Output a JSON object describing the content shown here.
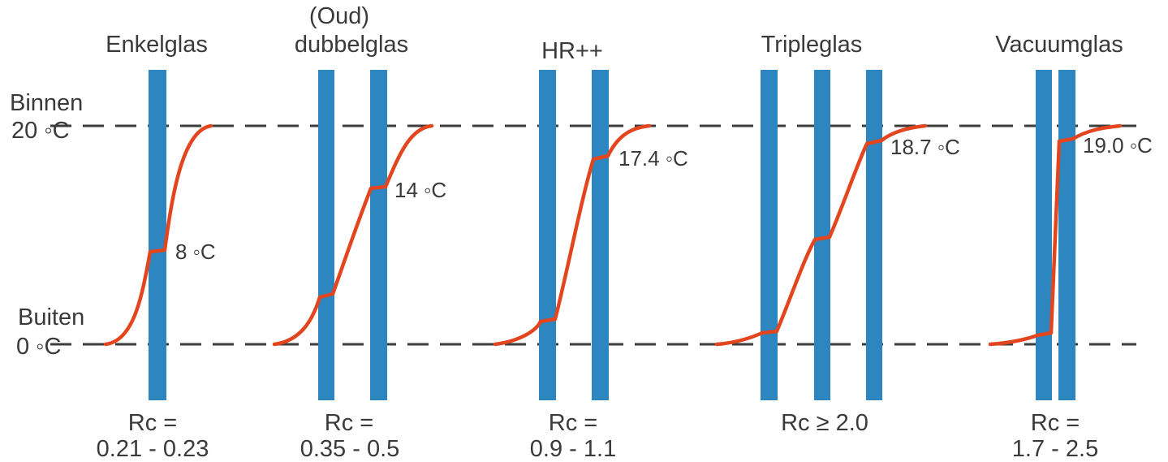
{
  "labels": {
    "inside": "Binnen",
    "inside_temp": "20 ◦C",
    "outside": "Buiten",
    "outside_temp": "0 ◦C"
  },
  "colors": {
    "glass": "#2e86c1",
    "curve": "#e3451f",
    "dash": "#3c3c3c",
    "text": "#3a3a3a"
  },
  "glazing": [
    {
      "title_lines": [
        "Enkelglas"
      ],
      "temp_label": "8 ◦C",
      "rc_lines": [
        "Rc =",
        "0.21 - 0.23"
      ]
    },
    {
      "title_lines": [
        "(Oud)",
        "dubbelglas"
      ],
      "temp_label": "14 ◦C",
      "rc_lines": [
        "Rc =",
        "0.35 - 0.5"
      ]
    },
    {
      "title_lines": [
        "HR++"
      ],
      "temp_label": "17.4 ◦C",
      "rc_lines": [
        "Rc =",
        "0.9 - 1.1"
      ]
    },
    {
      "title_lines": [
        "Tripleglas"
      ],
      "temp_label": "18.7 ◦C",
      "rc_lines": [
        "Rc ≥ 2.0"
      ]
    },
    {
      "title_lines": [
        "Vacuumglas"
      ],
      "temp_label": "19.0 ◦C",
      "rc_lines": [
        "Rc =",
        "1.7 - 2.5"
      ]
    }
  ]
}
